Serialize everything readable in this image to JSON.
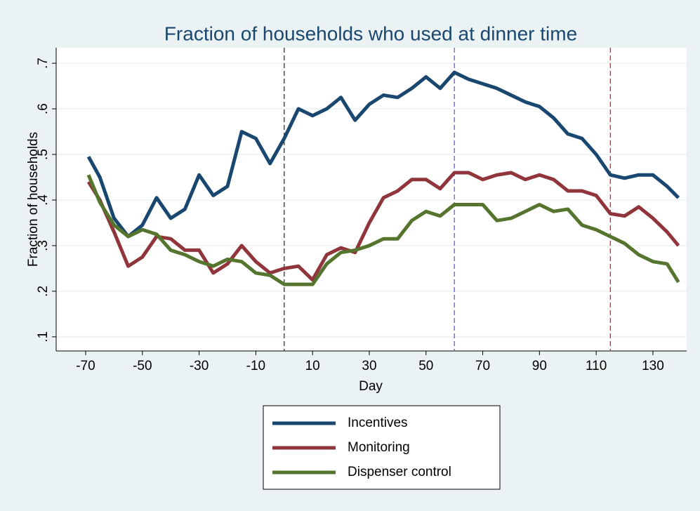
{
  "chart_data": {
    "type": "line",
    "title": "Fraction of households who used at dinner time",
    "x_label": "Day",
    "y_label": "Fraction of households",
    "x": [
      -69,
      -65,
      -60,
      -55,
      -50,
      -45,
      -40,
      -35,
      -30,
      -25,
      -20,
      -15,
      -10,
      -5,
      0,
      5,
      10,
      15,
      20,
      25,
      30,
      35,
      40,
      45,
      50,
      55,
      60,
      65,
      70,
      75,
      80,
      85,
      90,
      95,
      100,
      105,
      110,
      115,
      120,
      125,
      130,
      135,
      139
    ],
    "series": [
      {
        "name": "Incentives",
        "color": "#1a476f",
        "values": [
          0.495,
          0.45,
          0.36,
          0.32,
          0.345,
          0.405,
          0.36,
          0.38,
          0.455,
          0.41,
          0.43,
          0.55,
          0.535,
          0.48,
          0.535,
          0.6,
          0.585,
          0.6,
          0.625,
          0.575,
          0.61,
          0.63,
          0.625,
          0.645,
          0.67,
          0.645,
          0.68,
          0.665,
          0.655,
          0.645,
          0.63,
          0.615,
          0.605,
          0.58,
          0.545,
          0.535,
          0.5,
          0.455,
          0.448,
          0.455,
          0.455,
          0.43,
          0.405
        ]
      },
      {
        "name": "Monitoring",
        "color": "#90353b",
        "values": [
          0.44,
          0.4,
          0.33,
          0.255,
          0.275,
          0.32,
          0.315,
          0.29,
          0.29,
          0.24,
          0.26,
          0.3,
          0.265,
          0.24,
          0.25,
          0.255,
          0.225,
          0.28,
          0.295,
          0.285,
          0.35,
          0.405,
          0.42,
          0.445,
          0.445,
          0.425,
          0.46,
          0.46,
          0.445,
          0.455,
          0.46,
          0.445,
          0.455,
          0.445,
          0.42,
          0.42,
          0.41,
          0.37,
          0.365,
          0.385,
          0.36,
          0.33,
          0.3
        ]
      },
      {
        "name": "Dispenser control",
        "color": "#55752f",
        "values": [
          0.455,
          0.395,
          0.345,
          0.32,
          0.335,
          0.325,
          0.29,
          0.28,
          0.265,
          0.255,
          0.27,
          0.265,
          0.24,
          0.235,
          0.215,
          0.215,
          0.215,
          0.26,
          0.285,
          0.29,
          0.3,
          0.315,
          0.315,
          0.355,
          0.375,
          0.365,
          0.39,
          0.39,
          0.39,
          0.355,
          0.36,
          0.375,
          0.39,
          0.375,
          0.38,
          0.345,
          0.335,
          0.32,
          0.305,
          0.28,
          0.265,
          0.26,
          0.22
        ]
      }
    ],
    "vlines": [
      {
        "x": 0,
        "color": "#333333"
      },
      {
        "x": 60,
        "color": "#6a5acd"
      },
      {
        "x": 115,
        "color": "#dd2222"
      }
    ],
    "xlim": [
      -80.4,
      141.9
    ],
    "xticks": [
      -70,
      -50,
      -30,
      -10,
      10,
      30,
      50,
      70,
      90,
      110,
      130
    ],
    "ylim": [
      0.069,
      0.734
    ],
    "yticks": [
      {
        "value": 0.1,
        "label": ".1"
      },
      {
        "value": 0.2,
        "label": ".2"
      },
      {
        "value": 0.3,
        "label": ".3"
      },
      {
        "value": 0.4,
        "label": ".4"
      },
      {
        "value": 0.5,
        "label": ".5"
      },
      {
        "value": 0.6,
        "label": ".6"
      },
      {
        "value": 0.7,
        "label": ".7"
      }
    ],
    "grid": true
  }
}
